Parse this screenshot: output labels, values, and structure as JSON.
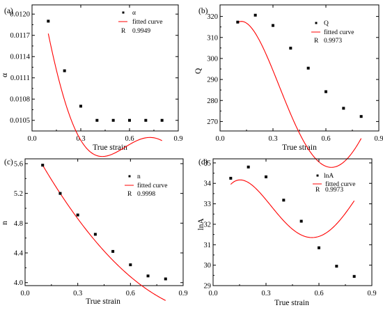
{
  "chart_data": [
    {
      "type": "scatter",
      "panel_label": "(a)",
      "xlabel": "True strain",
      "ylabel": "α",
      "xlim": [
        0.0,
        0.9
      ],
      "ylim": [
        0.01035,
        0.01213
      ],
      "xticks": [
        "0.0",
        "0.3",
        "0.6",
        "0.9"
      ],
      "xtick_values": [
        0.0,
        0.3,
        0.6,
        0.9
      ],
      "yticks": [
        "0.0105",
        "0.0108",
        "0.0111",
        "0.0114",
        "0.0117",
        "0.0120"
      ],
      "ytick_values": [
        0.0105,
        0.0108,
        0.0111,
        0.0114,
        0.0117,
        0.012
      ],
      "x": [
        0.1,
        0.2,
        0.3,
        0.4,
        0.5,
        0.6,
        0.7,
        0.8
      ],
      "y": [
        0.0119,
        0.0112,
        0.0107,
        0.0105,
        0.0105,
        0.0105,
        0.0105,
        0.0105
      ],
      "fit_coefficients": [
        0.012943,
        -0.0129,
        0.002227,
        0.05683,
        -0.08269,
        0.03338
      ],
      "legend": {
        "marker_label": "α",
        "curve_label": "fitted curve",
        "r_label": "R",
        "r_value": "0.9949",
        "position": "top-right"
      },
      "colors": {
        "marker": "#000000",
        "curve": "#ff0000"
      },
      "grid": false
    },
    {
      "type": "scatter",
      "panel_label": "(b)",
      "xlabel": "True strain",
      "ylabel": "Q",
      "xlim": [
        0.0,
        0.9
      ],
      "ylim": [
        265.5,
        325.5
      ],
      "xticks": [
        "0.0",
        "0.3",
        "0.6",
        "0.9"
      ],
      "xtick_values": [
        0.0,
        0.3,
        0.6,
        0.9
      ],
      "yticks": [
        "270",
        "280",
        "290",
        "300",
        "310",
        "320"
      ],
      "ytick_values": [
        270,
        280,
        290,
        300,
        310,
        320
      ],
      "x": [
        0.1,
        0.2,
        0.3,
        0.4,
        0.5,
        0.6,
        0.7,
        0.8
      ],
      "y": [
        317.3,
        320.6,
        315.7,
        304.9,
        295.4,
        284.2,
        276.3,
        272.4
      ],
      "fit_coefficients": [
        297.5,
        367.02,
        -1966.3,
        2681.7,
        -1083.4
      ],
      "legend": {
        "marker_label": "Q",
        "curve_label": "fitted curve",
        "r_label": "R",
        "r_value": "0.9973",
        "position": "top-right"
      },
      "colors": {
        "marker": "#000000",
        "curve": "#ff0000"
      },
      "grid": false
    },
    {
      "type": "scatter",
      "panel_label": "(c)",
      "xlabel": "True strain",
      "ylabel": "n",
      "xlim": [
        0.0,
        0.9
      ],
      "ylim": [
        3.96,
        5.665
      ],
      "xticks": [
        "0.0",
        "0.3",
        "0.6",
        "0.9"
      ],
      "xtick_values": [
        0.0,
        0.3,
        0.6,
        0.9
      ],
      "yticks": [
        "4.0",
        "4.4",
        "4.8",
        "5.2",
        "5.6"
      ],
      "ytick_values": [
        4.0,
        4.4,
        4.8,
        5.2,
        5.6
      ],
      "x": [
        0.1,
        0.2,
        0.3,
        0.4,
        0.5,
        0.6,
        0.7,
        0.8
      ],
      "y": [
        5.58,
        5.2,
        4.91,
        4.65,
        4.42,
        4.24,
        4.09,
        4.05
      ],
      "fit_coefficients": [
        6.0,
        -4.4,
        2.0
      ],
      "legend": {
        "marker_label": "n",
        "curve_label": "fitted curve",
        "r_label": "R",
        "r_value": "0.9998",
        "position": "top-right"
      },
      "colors": {
        "marker": "#000000",
        "curve": "#ff0000"
      },
      "grid": false
    },
    {
      "type": "scatter",
      "panel_label": "(d)",
      "xlabel": "True strain",
      "ylabel": "lnA",
      "xlim": [
        0.0,
        0.9
      ],
      "ylim": [
        29.0,
        35.2
      ],
      "xticks": [
        "0.0",
        "0.3",
        "0.6",
        "0.9"
      ],
      "xtick_values": [
        0.0,
        0.3,
        0.6,
        0.9
      ],
      "yticks": [
        "29",
        "30",
        "31",
        "32",
        "33",
        "34",
        "35"
      ],
      "ytick_values": [
        29,
        30,
        31,
        32,
        33,
        34,
        35
      ],
      "x": [
        0.1,
        0.2,
        0.3,
        0.4,
        0.5,
        0.6,
        0.7,
        0.8
      ],
      "y": [
        34.25,
        34.8,
        34.32,
        33.18,
        32.15,
        30.85,
        29.95,
        29.45
      ],
      "fit_coefficients": [
        31.96,
        33.27,
        -154.4,
        219.37,
        -95.04
      ],
      "legend": {
        "marker_label": "lnA",
        "curve_label": "fitted curve",
        "r_label": "R",
        "r_value": "0.9973",
        "position": "top-right"
      },
      "colors": {
        "marker": "#000000",
        "curve": "#ff0000"
      },
      "grid": false
    }
  ]
}
